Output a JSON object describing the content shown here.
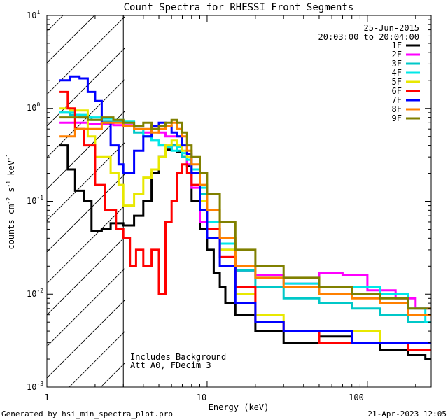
{
  "chart_data": {
    "type": "line",
    "title": "Count Spectra for RHESSI Front Segments",
    "xlabel": "Energy (keV)",
    "ylabel_parts": {
      "base": "counts cm",
      "exp1": "-2",
      "mid1": " s",
      "exp2": "-1",
      "mid2": " keV",
      "exp3": "-1"
    },
    "xscale": "log",
    "yscale": "log",
    "xlim": [
      1.0,
      250.0
    ],
    "ylim": [
      0.001,
      10.0
    ],
    "x_ticks": [
      {
        "value": 1,
        "label": "1"
      },
      {
        "value": 10,
        "label": "10"
      },
      {
        "value": 100,
        "label": "100"
      }
    ],
    "y_ticks": [
      {
        "value": 0.001,
        "base": "10",
        "exp": "-3"
      },
      {
        "value": 0.01,
        "base": "10",
        "exp": "-2"
      },
      {
        "value": 0.1,
        "base": "10",
        "exp": "-1"
      },
      {
        "value": 1,
        "base": "10",
        "exp": "0"
      },
      {
        "value": 10,
        "base": "10",
        "exp": "1"
      }
    ],
    "hatched_region": [
      1.0,
      3.0
    ],
    "date": "25-Jun-2015",
    "time_range": "20:03:00 to 20:04:00",
    "annotations": [
      "Includes Background",
      "Att A0, FDecim 3"
    ],
    "footer_left": "Generated by hsi_min_spectra_plot.pro",
    "footer_right": "21-Apr-2023 12:05",
    "legend_position": "top-right",
    "series": [
      {
        "name": "1F",
        "color": "#000000",
        "steps": [
          [
            1.2,
            0.4
          ],
          [
            1.35,
            0.22
          ],
          [
            1.5,
            0.13
          ],
          [
            1.7,
            0.1
          ],
          [
            1.9,
            0.048
          ],
          [
            2.2,
            0.05
          ],
          [
            2.5,
            0.058
          ],
          [
            3.0,
            0.055
          ],
          [
            3.5,
            0.07
          ],
          [
            4.0,
            0.1
          ],
          [
            4.5,
            0.2
          ],
          [
            5.0,
            0.3
          ],
          [
            5.5,
            0.36
          ],
          [
            6.0,
            0.4
          ],
          [
            6.5,
            0.34
          ],
          [
            7.0,
            0.3
          ],
          [
            7.5,
            0.24
          ],
          [
            8.0,
            0.1
          ],
          [
            9.0,
            0.05
          ],
          [
            10.0,
            0.03
          ],
          [
            11.0,
            0.017
          ],
          [
            12.0,
            0.012
          ],
          [
            13.0,
            0.008
          ],
          [
            15.0,
            0.006
          ],
          [
            20.0,
            0.004
          ],
          [
            30.0,
            0.003
          ],
          [
            50.0,
            0.0035
          ],
          [
            80.0,
            0.003
          ],
          [
            120.0,
            0.0025
          ],
          [
            180.0,
            0.0022
          ],
          [
            230.0,
            0.002
          ],
          [
            250.0,
            0.002
          ]
        ]
      },
      {
        "name": "2F",
        "color": "#ff00ff",
        "steps": [
          [
            1.2,
            0.7
          ],
          [
            1.5,
            0.7
          ],
          [
            1.8,
            0.68
          ],
          [
            2.2,
            0.68
          ],
          [
            2.6,
            0.66
          ],
          [
            3.0,
            0.66
          ],
          [
            3.5,
            0.6
          ],
          [
            4.0,
            0.55
          ],
          [
            4.5,
            0.6
          ],
          [
            5.0,
            0.55
          ],
          [
            5.5,
            0.5
          ],
          [
            6.0,
            0.5
          ],
          [
            6.5,
            0.5
          ],
          [
            7.0,
            0.3
          ],
          [
            7.5,
            0.25
          ],
          [
            8.0,
            0.14
          ],
          [
            9.0,
            0.06
          ],
          [
            10.0,
            0.04
          ],
          [
            12.0,
            0.025
          ],
          [
            15.0,
            0.018
          ],
          [
            20.0,
            0.016
          ],
          [
            30.0,
            0.013
          ],
          [
            50.0,
            0.017
          ],
          [
            70.0,
            0.016
          ],
          [
            100.0,
            0.011
          ],
          [
            150.0,
            0.009
          ],
          [
            200.0,
            0.007
          ],
          [
            250.0,
            0.006
          ]
        ]
      },
      {
        "name": "3F",
        "color": "#00c8c8",
        "steps": [
          [
            1.2,
            0.9
          ],
          [
            1.4,
            0.85
          ],
          [
            1.6,
            0.8
          ],
          [
            1.9,
            0.75
          ],
          [
            2.2,
            0.72
          ],
          [
            2.6,
            0.72
          ],
          [
            3.0,
            0.7
          ],
          [
            3.5,
            0.55
          ],
          [
            4.0,
            0.5
          ],
          [
            4.5,
            0.45
          ],
          [
            5.0,
            0.4
          ],
          [
            5.5,
            0.38
          ],
          [
            6.0,
            0.4
          ],
          [
            6.5,
            0.35
          ],
          [
            7.0,
            0.3
          ],
          [
            7.5,
            0.28
          ],
          [
            8.0,
            0.2
          ],
          [
            9.0,
            0.12
          ],
          [
            10.0,
            0.05
          ],
          [
            12.0,
            0.03
          ],
          [
            15.0,
            0.018
          ],
          [
            20.0,
            0.012
          ],
          [
            30.0,
            0.009
          ],
          [
            50.0,
            0.008
          ],
          [
            80.0,
            0.007
          ],
          [
            120.0,
            0.006
          ],
          [
            180.0,
            0.005
          ],
          [
            250.0,
            0.004
          ]
        ]
      },
      {
        "name": "4F",
        "color": "#00e8e8",
        "steps": [
          [
            1.2,
            0.9
          ],
          [
            1.5,
            0.85
          ],
          [
            1.8,
            0.8
          ],
          [
            2.2,
            0.78
          ],
          [
            2.6,
            0.75
          ],
          [
            3.0,
            0.72
          ],
          [
            3.5,
            0.6
          ],
          [
            4.0,
            0.5
          ],
          [
            4.5,
            0.45
          ],
          [
            5.0,
            0.4
          ],
          [
            5.5,
            0.38
          ],
          [
            6.0,
            0.35
          ],
          [
            6.5,
            0.38
          ],
          [
            7.0,
            0.33
          ],
          [
            7.5,
            0.28
          ],
          [
            8.0,
            0.22
          ],
          [
            9.0,
            0.14
          ],
          [
            10.0,
            0.06
          ],
          [
            12.0,
            0.035
          ],
          [
            15.0,
            0.02
          ],
          [
            20.0,
            0.015
          ],
          [
            30.0,
            0.013
          ],
          [
            50.0,
            0.012
          ],
          [
            80.0,
            0.012
          ],
          [
            120.0,
            0.01
          ],
          [
            180.0,
            0.007
          ],
          [
            230.0,
            0.005
          ],
          [
            250.0,
            0.005
          ]
        ]
      },
      {
        "name": "5F",
        "color": "#e8e800",
        "steps": [
          [
            1.2,
            1.0
          ],
          [
            1.4,
            0.95
          ],
          [
            1.6,
            0.95
          ],
          [
            1.8,
            0.5
          ],
          [
            2.0,
            0.3
          ],
          [
            2.2,
            0.3
          ],
          [
            2.5,
            0.2
          ],
          [
            2.8,
            0.15
          ],
          [
            3.0,
            0.09
          ],
          [
            3.5,
            0.12
          ],
          [
            4.0,
            0.18
          ],
          [
            4.5,
            0.22
          ],
          [
            5.0,
            0.3
          ],
          [
            5.5,
            0.4
          ],
          [
            6.0,
            0.45
          ],
          [
            6.5,
            0.4
          ],
          [
            7.0,
            0.35
          ],
          [
            7.5,
            0.3
          ],
          [
            8.0,
            0.2
          ],
          [
            9.0,
            0.1
          ],
          [
            10.0,
            0.05
          ],
          [
            12.0,
            0.03
          ],
          [
            15.0,
            0.01
          ],
          [
            20.0,
            0.006
          ],
          [
            30.0,
            0.004
          ],
          [
            50.0,
            0.004
          ],
          [
            80.0,
            0.004
          ],
          [
            120.0,
            0.003
          ],
          [
            180.0,
            0.003
          ],
          [
            250.0,
            0.003
          ]
        ]
      },
      {
        "name": "6F",
        "color": "#ff0000",
        "steps": [
          [
            1.2,
            1.5
          ],
          [
            1.35,
            1.0
          ],
          [
            1.5,
            0.6
          ],
          [
            1.7,
            0.4
          ],
          [
            2.0,
            0.15
          ],
          [
            2.3,
            0.08
          ],
          [
            2.7,
            0.05
          ],
          [
            3.0,
            0.04
          ],
          [
            3.3,
            0.02
          ],
          [
            3.6,
            0.03
          ],
          [
            4.0,
            0.02
          ],
          [
            4.5,
            0.03
          ],
          [
            5.0,
            0.01
          ],
          [
            5.5,
            0.06
          ],
          [
            6.0,
            0.1
          ],
          [
            6.5,
            0.2
          ],
          [
            7.0,
            0.25
          ],
          [
            7.5,
            0.2
          ],
          [
            8.0,
            0.15
          ],
          [
            9.0,
            0.08
          ],
          [
            10.0,
            0.05
          ],
          [
            12.0,
            0.025
          ],
          [
            15.0,
            0.012
          ],
          [
            20.0,
            0.005
          ],
          [
            30.0,
            0.004
          ],
          [
            50.0,
            0.003
          ],
          [
            80.0,
            0.003
          ],
          [
            120.0,
            0.003
          ],
          [
            180.0,
            0.0025
          ],
          [
            250.0,
            0.002
          ]
        ]
      },
      {
        "name": "7F",
        "color": "#0000ff",
        "steps": [
          [
            1.2,
            2.0
          ],
          [
            1.4,
            2.2
          ],
          [
            1.6,
            2.1
          ],
          [
            1.8,
            1.5
          ],
          [
            2.0,
            1.2
          ],
          [
            2.2,
            0.7
          ],
          [
            2.5,
            0.4
          ],
          [
            2.8,
            0.25
          ],
          [
            3.0,
            0.2
          ],
          [
            3.5,
            0.35
          ],
          [
            4.0,
            0.5
          ],
          [
            4.5,
            0.65
          ],
          [
            5.0,
            0.7
          ],
          [
            5.5,
            0.65
          ],
          [
            6.0,
            0.55
          ],
          [
            6.5,
            0.5
          ],
          [
            7.0,
            0.4
          ],
          [
            7.5,
            0.32
          ],
          [
            8.0,
            0.2
          ],
          [
            9.0,
            0.08
          ],
          [
            10.0,
            0.04
          ],
          [
            12.0,
            0.02
          ],
          [
            15.0,
            0.008
          ],
          [
            20.0,
            0.005
          ],
          [
            30.0,
            0.004
          ],
          [
            50.0,
            0.004
          ],
          [
            80.0,
            0.003
          ],
          [
            120.0,
            0.003
          ],
          [
            180.0,
            0.003
          ],
          [
            250.0,
            0.002
          ]
        ]
      },
      {
        "name": "8F",
        "color": "#ff8000",
        "steps": [
          [
            1.2,
            0.5
          ],
          [
            1.5,
            0.6
          ],
          [
            1.8,
            0.6
          ],
          [
            2.2,
            0.7
          ],
          [
            2.6,
            0.7
          ],
          [
            3.0,
            0.65
          ],
          [
            3.5,
            0.6
          ],
          [
            4.0,
            0.6
          ],
          [
            4.5,
            0.55
          ],
          [
            5.0,
            0.6
          ],
          [
            5.5,
            0.65
          ],
          [
            6.0,
            0.7
          ],
          [
            6.5,
            0.6
          ],
          [
            7.0,
            0.5
          ],
          [
            7.5,
            0.35
          ],
          [
            8.0,
            0.25
          ],
          [
            9.0,
            0.15
          ],
          [
            10.0,
            0.08
          ],
          [
            12.0,
            0.04
          ],
          [
            15.0,
            0.02
          ],
          [
            20.0,
            0.015
          ],
          [
            30.0,
            0.012
          ],
          [
            50.0,
            0.01
          ],
          [
            80.0,
            0.009
          ],
          [
            120.0,
            0.008
          ],
          [
            180.0,
            0.006
          ],
          [
            250.0,
            0.004
          ]
        ]
      },
      {
        "name": "9F",
        "color": "#808000",
        "steps": [
          [
            1.2,
            0.8
          ],
          [
            1.5,
            0.8
          ],
          [
            1.8,
            0.75
          ],
          [
            2.2,
            0.8
          ],
          [
            2.6,
            0.75
          ],
          [
            3.0,
            0.7
          ],
          [
            3.5,
            0.65
          ],
          [
            4.0,
            0.7
          ],
          [
            4.5,
            0.6
          ],
          [
            5.0,
            0.65
          ],
          [
            5.5,
            0.7
          ],
          [
            6.0,
            0.75
          ],
          [
            6.5,
            0.7
          ],
          [
            7.0,
            0.55
          ],
          [
            7.5,
            0.4
          ],
          [
            8.0,
            0.3
          ],
          [
            9.0,
            0.2
          ],
          [
            10.0,
            0.12
          ],
          [
            12.0,
            0.06
          ],
          [
            15.0,
            0.03
          ],
          [
            20.0,
            0.02
          ],
          [
            30.0,
            0.015
          ],
          [
            50.0,
            0.012
          ],
          [
            80.0,
            0.01
          ],
          [
            120.0,
            0.009
          ],
          [
            180.0,
            0.007
          ],
          [
            250.0,
            0.005
          ]
        ]
      }
    ]
  }
}
